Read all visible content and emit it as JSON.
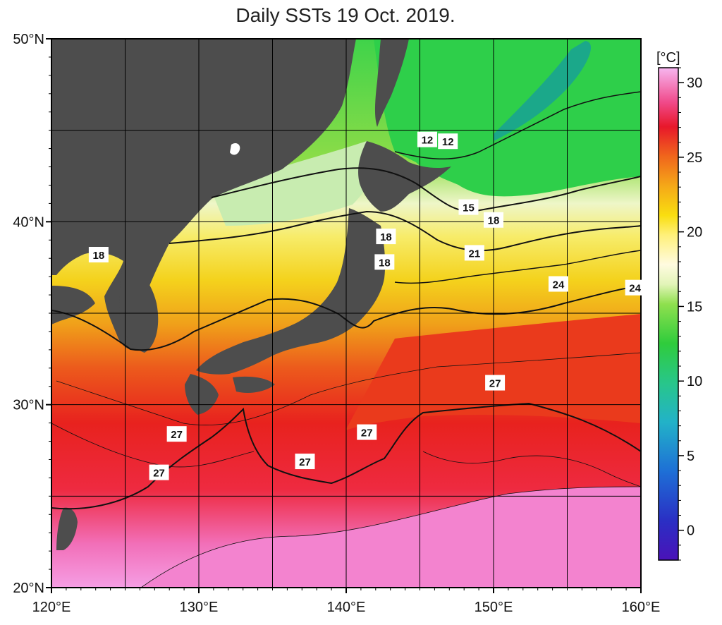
{
  "title": "Daily SSTs 19 Oct. 2019.",
  "lat_axis": {
    "range": [
      20,
      50
    ],
    "ticks": [
      {
        "value": 50,
        "label": "50°N"
      },
      {
        "value": 40,
        "label": "40°N"
      },
      {
        "value": 30,
        "label": "30°N"
      },
      {
        "value": 20,
        "label": "20°N"
      }
    ]
  },
  "lon_axis": {
    "range": [
      120,
      160
    ],
    "ticks": [
      {
        "value": 120,
        "label": "120°E"
      },
      {
        "value": 130,
        "label": "130°E"
      },
      {
        "value": 140,
        "label": "140°E"
      },
      {
        "value": 150,
        "label": "150°E"
      },
      {
        "value": 160,
        "label": "160°E"
      }
    ]
  },
  "colorbar": {
    "unit": "[°C]",
    "range": [
      -2,
      31
    ],
    "ticks": [
      "30",
      "25",
      "20",
      "15",
      "10",
      "5",
      "0"
    ],
    "tick_values": [
      30,
      25,
      20,
      15,
      10,
      5,
      0
    ],
    "colors": [
      "#4a12b8",
      "#1f3ec8",
      "#1b7fd8",
      "#22b4c8",
      "#2bc79a",
      "#25c85a",
      "#3ccf2a",
      "#8be04a",
      "#d8f0a8",
      "#fffbe0",
      "#fff07a",
      "#f9e21a",
      "#f5b418",
      "#f07a1c",
      "#ec3a1a",
      "#e8182a",
      "#f04a7a",
      "#f58ad0",
      "#f7b0ef"
    ]
  },
  "contour_labels": [
    {
      "text": "18",
      "lon": 123.2,
      "lat": 38.2
    },
    {
      "text": "12",
      "lon": 145.5,
      "lat": 44.5
    },
    {
      "text": "12",
      "lon": 146.9,
      "lat": 44.4
    },
    {
      "text": "15",
      "lon": 148.3,
      "lat": 40.8
    },
    {
      "text": "18",
      "lon": 150.0,
      "lat": 40.1
    },
    {
      "text": "18",
      "lon": 142.7,
      "lat": 39.2
    },
    {
      "text": "18",
      "lon": 142.6,
      "lat": 37.8
    },
    {
      "text": "21",
      "lon": 148.7,
      "lat": 38.3
    },
    {
      "text": "24",
      "lon": 154.4,
      "lat": 36.6
    },
    {
      "text": "24",
      "lon": 159.6,
      "lat": 36.4
    },
    {
      "text": "27",
      "lon": 150.1,
      "lat": 31.2
    },
    {
      "text": "27",
      "lon": 141.4,
      "lat": 28.5
    },
    {
      "text": "27",
      "lon": 128.5,
      "lat": 28.4
    },
    {
      "text": "27",
      "lon": 137.2,
      "lat": 26.9
    },
    {
      "text": "27",
      "lon": 127.3,
      "lat": 26.3
    }
  ],
  "colors": {
    "land": "#4d4d4d",
    "frame": "#000000",
    "grid": "#000000",
    "contour": "#111111"
  }
}
